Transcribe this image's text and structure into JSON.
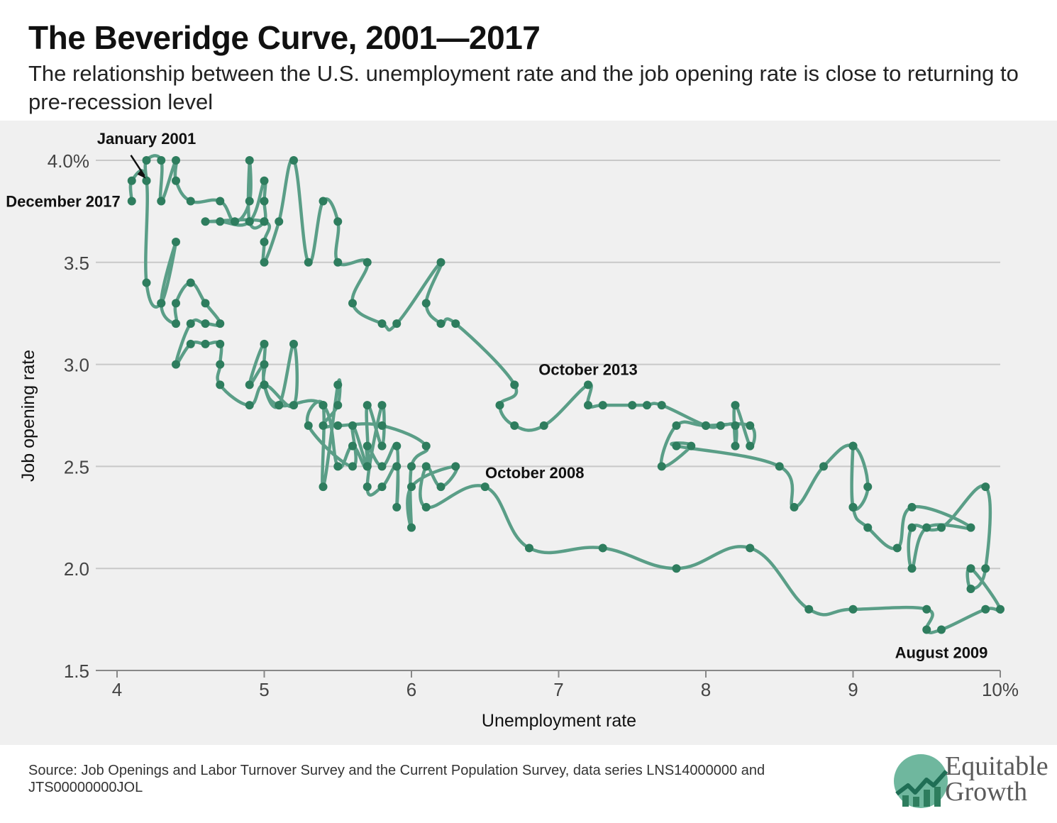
{
  "header": {
    "title": "The Beveridge Curve, 2001—2017",
    "subtitle": "The relationship between the U.S. unemployment rate and the job opening rate is close to returning to pre-recession level"
  },
  "footer": {
    "source": "Source: Job Openings and Labor Turnover Survey and the Current Population Survey, data series LNS14000000 and JTS00000000JOL"
  },
  "logo": {
    "line1": "Equitable",
    "line2": "Growth",
    "icon": "rising-chart-logo-icon"
  },
  "colors": {
    "line": "#5a9e87",
    "marker": "#2e7d5e",
    "grid": "#c8c8c8",
    "plot_bg": "#f0f0f0"
  },
  "chart_data": {
    "type": "line",
    "xlabel": "Unemployment rate",
    "ylabel": "Job opening rate",
    "xlim": [
      3.95,
      10
    ],
    "ylim": [
      1.5,
      4.0
    ],
    "xticks": [
      {
        "value": 4,
        "label": "4"
      },
      {
        "value": 5,
        "label": "5"
      },
      {
        "value": 6,
        "label": "6"
      },
      {
        "value": 7,
        "label": "7"
      },
      {
        "value": 8,
        "label": "8"
      },
      {
        "value": 9,
        "label": "9"
      },
      {
        "value": 10,
        "label": "10%"
      }
    ],
    "yticks": [
      {
        "value": 1.5,
        "label": "1.5"
      },
      {
        "value": 2.0,
        "label": "2.0"
      },
      {
        "value": 2.5,
        "label": "2.5"
      },
      {
        "value": 3.0,
        "label": "3.0"
      },
      {
        "value": 3.5,
        "label": "3.5"
      },
      {
        "value": 4.0,
        "label": "4.0%"
      }
    ],
    "grid": true,
    "points": [
      [
        4.2,
        3.9
      ],
      [
        4.2,
        4.0
      ],
      [
        4.3,
        4.0
      ],
      [
        4.3,
        3.8
      ],
      [
        4.4,
        4.0
      ],
      [
        4.4,
        3.9
      ],
      [
        4.5,
        3.8
      ],
      [
        4.7,
        3.8
      ],
      [
        4.8,
        3.7
      ],
      [
        4.9,
        3.8
      ],
      [
        4.9,
        4.0
      ],
      [
        4.9,
        3.7
      ],
      [
        5.0,
        3.7
      ],
      [
        5.0,
        3.8
      ],
      [
        5.0,
        3.9
      ],
      [
        4.9,
        3.7
      ],
      [
        4.7,
        3.7
      ],
      [
        4.6,
        3.7
      ],
      [
        5.0,
        3.7
      ],
      [
        5.0,
        3.6
      ],
      [
        5.0,
        3.5
      ],
      [
        5.1,
        3.7
      ],
      [
        5.2,
        4.0
      ],
      [
        5.3,
        3.5
      ],
      [
        5.4,
        3.8
      ],
      [
        5.5,
        3.7
      ],
      [
        5.5,
        3.5
      ],
      [
        5.7,
        3.5
      ],
      [
        5.6,
        3.3
      ],
      [
        5.8,
        3.2
      ],
      [
        5.9,
        3.2
      ],
      [
        6.2,
        3.5
      ],
      [
        6.1,
        3.3
      ],
      [
        6.2,
        3.2
      ],
      [
        6.3,
        3.2
      ],
      [
        6.7,
        2.9
      ],
      [
        6.6,
        2.8
      ],
      [
        6.7,
        2.7
      ],
      [
        6.9,
        2.7
      ],
      [
        7.2,
        2.9
      ],
      [
        7.2,
        2.8
      ],
      [
        7.3,
        2.8
      ],
      [
        7.5,
        2.8
      ],
      [
        7.6,
        2.8
      ],
      [
        7.7,
        2.8
      ],
      [
        8.0,
        2.7
      ],
      [
        8.1,
        2.7
      ],
      [
        8.2,
        2.7
      ],
      [
        8.2,
        2.6
      ],
      [
        8.2,
        2.8
      ],
      [
        8.3,
        2.6
      ],
      [
        8.3,
        2.7
      ],
      [
        8.0,
        2.7
      ],
      [
        7.8,
        2.7
      ],
      [
        7.7,
        2.5
      ],
      [
        7.9,
        2.6
      ],
      [
        7.8,
        2.6
      ],
      [
        8.5,
        2.5
      ],
      [
        8.6,
        2.3
      ],
      [
        8.8,
        2.5
      ],
      [
        9.0,
        2.6
      ],
      [
        9.1,
        2.4
      ],
      [
        9.0,
        2.3
      ],
      [
        9.0,
        2.6
      ],
      [
        9.0,
        2.3
      ],
      [
        9.1,
        2.2
      ],
      [
        9.3,
        2.1
      ],
      [
        9.4,
        2.3
      ],
      [
        9.8,
        2.2
      ],
      [
        9.5,
        2.2
      ],
      [
        9.4,
        2.0
      ],
      [
        9.4,
        2.2
      ],
      [
        9.6,
        2.2
      ],
      [
        9.9,
        2.4
      ],
      [
        9.9,
        2.0
      ],
      [
        9.8,
        1.9
      ],
      [
        9.8,
        2.0
      ],
      [
        10.0,
        1.8
      ],
      [
        9.9,
        1.8
      ],
      [
        9.6,
        1.7
      ],
      [
        9.5,
        1.7
      ],
      [
        9.5,
        1.8
      ],
      [
        9.0,
        1.8
      ],
      [
        8.7,
        1.8
      ],
      [
        8.3,
        2.1
      ],
      [
        7.8,
        2.0
      ],
      [
        7.3,
        2.1
      ],
      [
        6.8,
        2.1
      ],
      [
        6.5,
        2.4
      ],
      [
        6.1,
        2.3
      ],
      [
        6.1,
        2.5
      ],
      [
        6.2,
        2.4
      ],
      [
        6.3,
        2.5
      ],
      [
        6.0,
        2.4
      ],
      [
        6.0,
        2.2
      ],
      [
        6.0,
        2.5
      ],
      [
        6.1,
        2.6
      ],
      [
        5.8,
        2.7
      ],
      [
        5.5,
        2.7
      ],
      [
        5.4,
        2.7
      ],
      [
        5.5,
        2.8
      ],
      [
        5.5,
        2.9
      ],
      [
        5.4,
        2.4
      ],
      [
        5.4,
        2.8
      ],
      [
        5.3,
        2.7
      ],
      [
        5.6,
        2.5
      ],
      [
        5.6,
        2.7
      ],
      [
        5.7,
        2.5
      ],
      [
        5.7,
        2.6
      ],
      [
        5.8,
        2.5
      ],
      [
        5.9,
        2.6
      ],
      [
        5.9,
        2.3
      ],
      [
        5.9,
        2.5
      ],
      [
        5.8,
        2.4
      ],
      [
        5.7,
        2.4
      ],
      [
        5.8,
        2.8
      ],
      [
        5.8,
        2.6
      ],
      [
        5.7,
        2.8
      ],
      [
        5.7,
        2.5
      ],
      [
        5.6,
        2.6
      ],
      [
        5.5,
        2.5
      ],
      [
        5.4,
        2.8
      ],
      [
        5.1,
        2.8
      ],
      [
        5.0,
        2.9
      ],
      [
        5.0,
        3.0
      ],
      [
        4.9,
        2.9
      ],
      [
        5.0,
        3.1
      ],
      [
        5.0,
        2.9
      ],
      [
        5.1,
        2.8
      ],
      [
        5.2,
        3.1
      ],
      [
        5.2,
        2.8
      ],
      [
        5.0,
        2.9
      ],
      [
        4.9,
        2.8
      ],
      [
        4.7,
        2.9
      ],
      [
        4.7,
        3.0
      ],
      [
        4.7,
        3.1
      ],
      [
        4.6,
        3.1
      ],
      [
        4.5,
        3.1
      ],
      [
        4.4,
        3.0
      ],
      [
        4.5,
        3.2
      ],
      [
        4.6,
        3.2
      ],
      [
        4.7,
        3.2
      ],
      [
        4.6,
        3.3
      ],
      [
        4.5,
        3.4
      ],
      [
        4.4,
        3.3
      ],
      [
        4.4,
        3.2
      ],
      [
        4.3,
        3.3
      ],
      [
        4.4,
        3.6
      ],
      [
        4.3,
        3.3
      ],
      [
        4.2,
        3.4
      ],
      [
        4.2,
        3.9
      ],
      [
        4.1,
        3.9
      ],
      [
        4.1,
        3.8
      ]
    ],
    "annotations": [
      {
        "text": "January 2001",
        "x": 4.2,
        "y": 3.9
      },
      {
        "text": "December 2017",
        "x": 4.1,
        "y": 3.8
      },
      {
        "text": "October 2013",
        "x": 7.2,
        "y": 2.9
      },
      {
        "text": "October 2008",
        "x": 6.5,
        "y": 2.4
      },
      {
        "text": "August 2009",
        "x": 9.6,
        "y": 1.7
      }
    ]
  }
}
